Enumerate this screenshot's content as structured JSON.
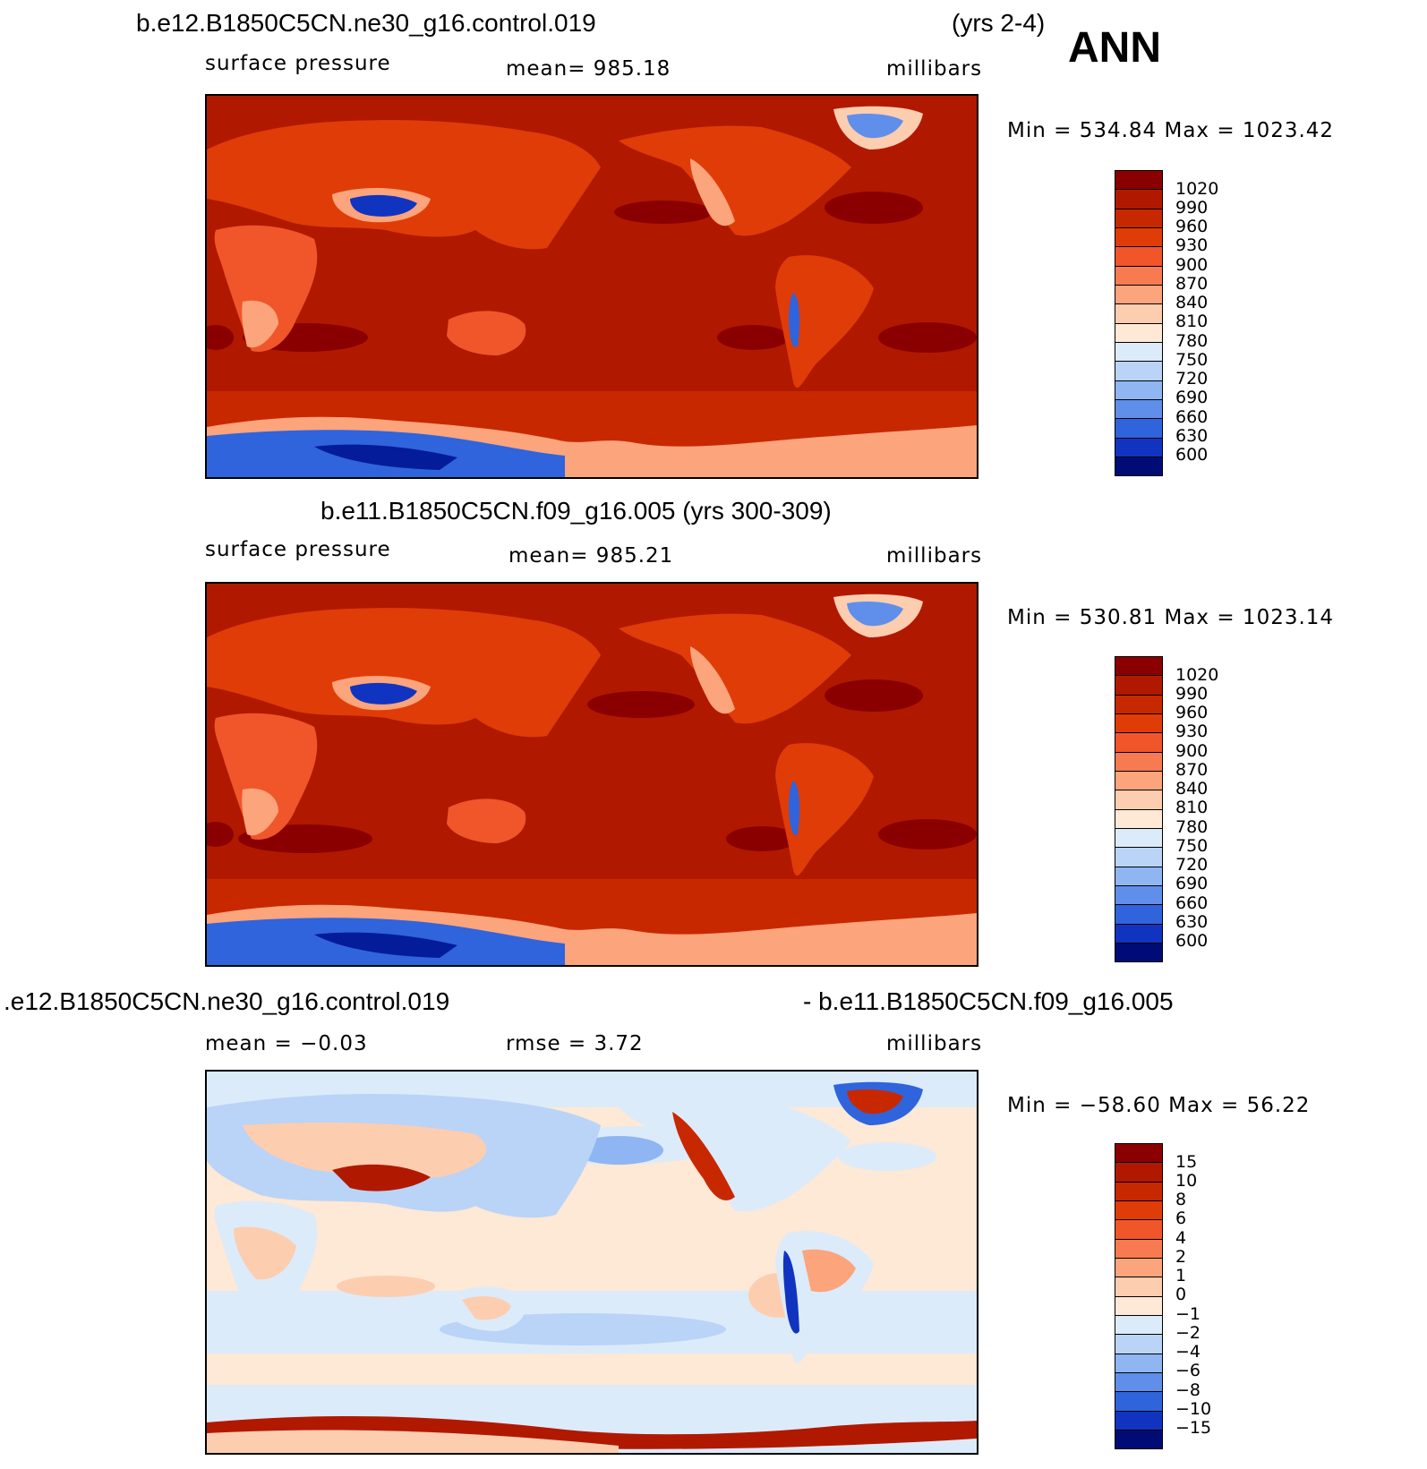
{
  "season": "ANN",
  "panels": [
    {
      "case_title": "b.e12.B1850C5CN.ne30_g16.control.019",
      "years": "(yrs 2-4)",
      "left_label": "surface pressure",
      "center_label": "mean=  985.18",
      "units": "millibars",
      "minmax": "Min  =  534.84  Max  =  1023.42",
      "colorbar_labels": [
        "1020",
        "990",
        "960",
        "930",
        "900",
        "870",
        "840",
        "810",
        "780",
        "750",
        "720",
        "690",
        "660",
        "630",
        "600"
      ]
    },
    {
      "case_title": "b.e11.B1850C5CN.f09_g16.005 (yrs 300-309)",
      "left_label": "surface pressure",
      "center_label": "mean=  985.21",
      "units": "millibars",
      "minmax": "Min  =  530.81  Max  =  1023.14",
      "colorbar_labels": [
        "1020",
        "990",
        "960",
        "930",
        "900",
        "870",
        "840",
        "810",
        "780",
        "750",
        "720",
        "690",
        "660",
        "630",
        "600"
      ]
    },
    {
      "case_title_left": ".e12.B1850C5CN.ne30_g16.control.019",
      "case_title_right": "- b.e11.B1850C5CN.f09_g16.005",
      "left_label": "mean  =    −0.03",
      "center_label": "rmse  =     3.72",
      "units": "millibars",
      "minmax": "Min  =  −58.60  Max  =    56.22",
      "colorbar_labels": [
        "15",
        "10",
        "8",
        "6",
        "4",
        "2",
        "1",
        "0",
        "−1",
        "−2",
        "−4",
        "−6",
        "−8",
        "−10",
        "−15"
      ]
    }
  ],
  "colors": {
    "abs_scale": [
      "#8a0000",
      "#b01900",
      "#c82800",
      "#e03c08",
      "#f0562a",
      "#f87a50",
      "#fca47c",
      "#fdcdb0",
      "#fee8d6",
      "#dcebfa",
      "#b9d4f7",
      "#8fb5f2",
      "#5f8fea",
      "#2f64dc",
      "#1034c0",
      "#041c9a",
      "#000b76"
    ],
    "diff_scale": [
      "#8a0000",
      "#b01900",
      "#c82800",
      "#e03c08",
      "#f0562a",
      "#f87a50",
      "#fca47c",
      "#fdcdb0",
      "#fee8d6",
      "#dcebfa",
      "#b9d4f7",
      "#8fb5f2",
      "#5f8fea",
      "#2f64dc",
      "#1034c0",
      "#041c9a",
      "#000b76"
    ],
    "ocean_abs": "#b01900",
    "ocean_diff": "#fee8d6"
  }
}
